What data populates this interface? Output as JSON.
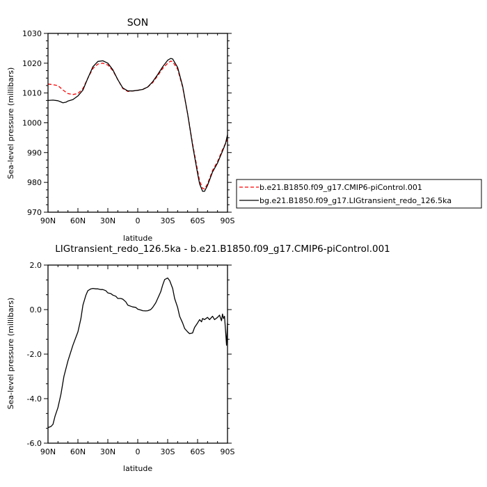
{
  "chart_data": [
    {
      "type": "line",
      "title": "SON",
      "xlabel": "latitude",
      "ylabel": "Sea-level pressure (millibars)",
      "x_ticks": [
        {
          "lat": 90,
          "label": "90N"
        },
        {
          "lat": 60,
          "label": "60N"
        },
        {
          "lat": 30,
          "label": "30N"
        },
        {
          "lat": 0,
          "label": "0"
        },
        {
          "lat": -30,
          "label": "30S"
        },
        {
          "lat": -60,
          "label": "60S"
        },
        {
          "lat": -90,
          "label": "90S"
        }
      ],
      "y_ticks": [
        {
          "value": 970,
          "label": "970"
        },
        {
          "value": 980,
          "label": "980"
        },
        {
          "value": 990,
          "label": "990"
        },
        {
          "value": 1000,
          "label": "1000"
        },
        {
          "value": 1010,
          "label": "1010"
        },
        {
          "value": 1020,
          "label": "1020"
        },
        {
          "value": 1030,
          "label": "1030"
        }
      ],
      "xlim": [
        90,
        -90
      ],
      "ylim": [
        970,
        1030
      ],
      "grid": false,
      "legend_position": "right",
      "series": [
        {
          "name": "b.e21.B1850.f09_g17.CMIP6-piControl.001",
          "color": "#ff0000",
          "dash": "dashed",
          "x": [
            90,
            85,
            80,
            75,
            70,
            65,
            60,
            55,
            50,
            45,
            40,
            35,
            30,
            25,
            20,
            15,
            10,
            5,
            0,
            -5,
            -10,
            -15,
            -20,
            -25,
            -30,
            -33,
            -35,
            -40,
            -45,
            -50,
            -55,
            -60,
            -62,
            -65,
            -67,
            -70,
            -75,
            -80,
            -85,
            -90
          ],
          "y": [
            1013,
            1012.8,
            1012.5,
            1011,
            1009.8,
            1009.5,
            1009.8,
            1011.5,
            1015,
            1018.2,
            1019.7,
            1020,
            1019.4,
            1017.5,
            1014.5,
            1011.5,
            1010.5,
            1010.7,
            1010.9,
            1011.2,
            1012,
            1013.5,
            1015.8,
            1018.2,
            1020,
            1020.7,
            1020.5,
            1018,
            1012,
            1003,
            993,
            984,
            980.5,
            978,
            977.8,
            979.5,
            984,
            987,
            991,
            994.5
          ]
        },
        {
          "name": "bg.e21.B1850.f09_g17.LIGtransient_redo_126.5ka",
          "color": "#000000",
          "dash": "solid",
          "x": [
            90,
            85,
            80,
            77,
            75,
            72,
            70,
            65,
            60,
            55,
            50,
            45,
            40,
            35,
            30,
            25,
            20,
            15,
            10,
            5,
            0,
            -5,
            -10,
            -15,
            -20,
            -25,
            -30,
            -33,
            -35,
            -40,
            -45,
            -50,
            -55,
            -60,
            -62,
            -65,
            -67,
            -70,
            -75,
            -80,
            -85,
            -88,
            -90
          ],
          "y": [
            1007.5,
            1007.6,
            1007.4,
            1007,
            1006.7,
            1006.9,
            1007.3,
            1007.8,
            1009,
            1011,
            1015,
            1018.8,
            1020.6,
            1020.8,
            1020,
            1017.8,
            1014.5,
            1011.7,
            1010.7,
            1010.7,
            1010.9,
            1011.2,
            1012,
            1013.8,
            1016.2,
            1018.8,
            1021,
            1021.6,
            1021.4,
            1018.6,
            1012.3,
            1003,
            992.5,
            983,
            979.5,
            977,
            977,
            979,
            983.5,
            986.5,
            990.5,
            993,
            996
          ]
        }
      ]
    },
    {
      "type": "line",
      "title": "LIGtransient_redo_126.5ka - b.e21.B1850.f09_g17.CMIP6-piControl.001",
      "xlabel": "latitude",
      "ylabel": "Sea-level pressure (millibars)",
      "x_ticks": [
        {
          "lat": 90,
          "label": "90N"
        },
        {
          "lat": 60,
          "label": "60N"
        },
        {
          "lat": 30,
          "label": "30N"
        },
        {
          "lat": 0,
          "label": "0"
        },
        {
          "lat": -30,
          "label": "30S"
        },
        {
          "lat": -60,
          "label": "60S"
        },
        {
          "lat": -90,
          "label": "90S"
        }
      ],
      "y_ticks": [
        {
          "value": -6,
          "label": "-6.0"
        },
        {
          "value": -4,
          "label": "-4.0"
        },
        {
          "value": -2,
          "label": "-2.0"
        },
        {
          "value": 0,
          "label": "0.0"
        },
        {
          "value": 2,
          "label": "2.0"
        }
      ],
      "xlim": [
        90,
        -90
      ],
      "ylim": [
        -6,
        2
      ],
      "grid": false,
      "series": [
        {
          "color": "#000000",
          "dash": "solid",
          "x": [
            90,
            87,
            85,
            83,
            80,
            77,
            74,
            70,
            65,
            60,
            57,
            55,
            52,
            50,
            47,
            45,
            42,
            40,
            37,
            35,
            32,
            30,
            27,
            25,
            22,
            20,
            17,
            15,
            12,
            10,
            7,
            5,
            2,
            0,
            -3,
            -5,
            -8,
            -10,
            -13,
            -15,
            -18,
            -20,
            -23,
            -25,
            -27,
            -30,
            -32,
            -35,
            -37,
            -40,
            -42,
            -45,
            -47,
            -50,
            -52,
            -55,
            -57,
            -60,
            -62,
            -64,
            -65,
            -67,
            -70,
            -72,
            -75,
            -77,
            -80,
            -82,
            -84,
            -85,
            -86,
            -87,
            -88,
            -89,
            -90
          ],
          "y": [
            -5.3,
            -5.25,
            -5.15,
            -4.8,
            -4.4,
            -3.8,
            -3.0,
            -2.3,
            -1.6,
            -1.0,
            -0.4,
            0.2,
            0.65,
            0.85,
            0.93,
            0.95,
            0.93,
            0.93,
            0.9,
            0.9,
            0.85,
            0.75,
            0.72,
            0.65,
            0.6,
            0.5,
            0.5,
            0.47,
            0.35,
            0.2,
            0.15,
            0.12,
            0.1,
            0.02,
            -0.02,
            -0.05,
            -0.06,
            -0.05,
            0.0,
            0.1,
            0.3,
            0.5,
            0.8,
            1.1,
            1.35,
            1.42,
            1.3,
            0.95,
            0.5,
            0.1,
            -0.3,
            -0.6,
            -0.85,
            -1.0,
            -1.08,
            -1.05,
            -0.8,
            -0.6,
            -0.45,
            -0.55,
            -0.4,
            -0.45,
            -0.35,
            -0.45,
            -0.3,
            -0.45,
            -0.35,
            -0.25,
            -0.5,
            -0.2,
            -0.4,
            -0.3,
            -0.9,
            -1.6,
            -0.6
          ]
        }
      ]
    }
  ]
}
